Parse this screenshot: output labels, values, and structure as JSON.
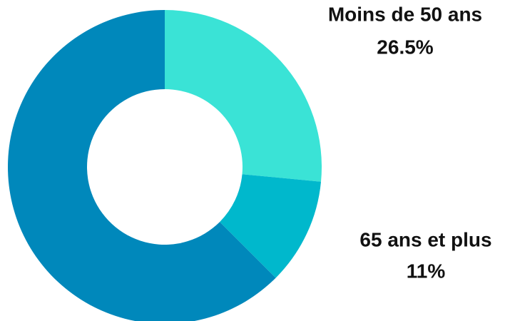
{
  "chart_data": {
    "type": "donut",
    "categories": [
      "Moins de 50 ans",
      "65 ans et plus",
      null
    ],
    "values": [
      26.5,
      11,
      62.5
    ],
    "value_labels": [
      "26.5%",
      "11%",
      null
    ],
    "colors": [
      "#3ae3d6",
      "#00b8cc",
      "#0088bb"
    ]
  }
}
